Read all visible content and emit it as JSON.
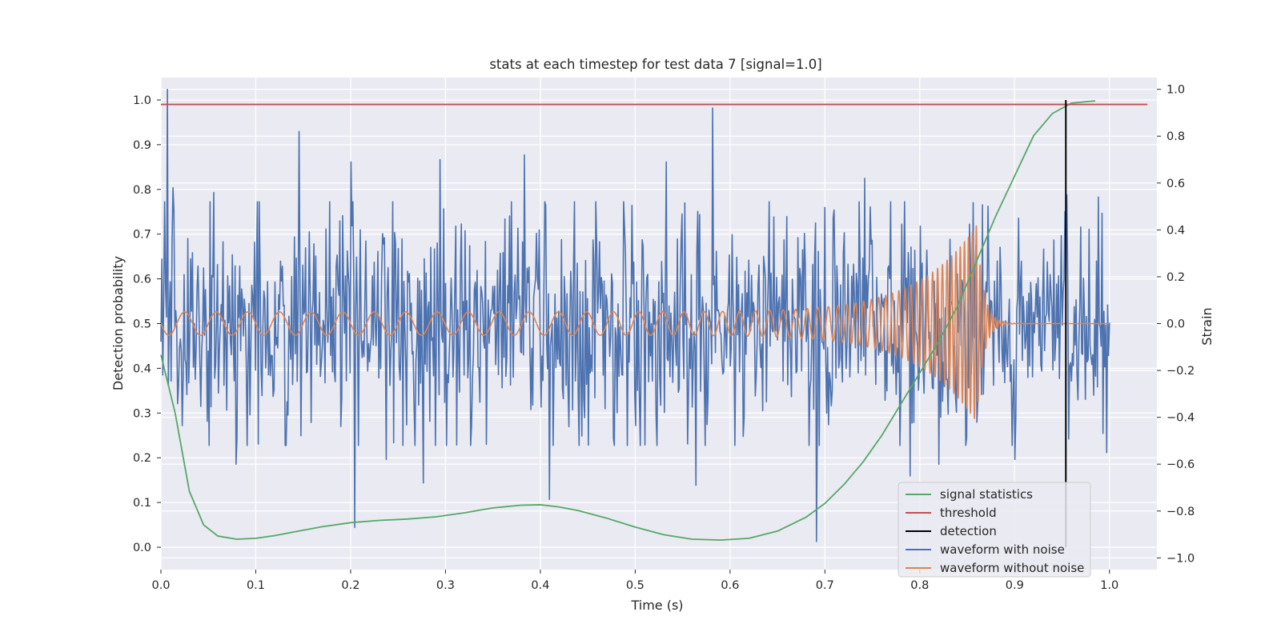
{
  "chart_data": {
    "type": "line",
    "title": "stats at each timestep for test data 7 [signal=1.0]",
    "xlabel": "Time (s)",
    "ylabel": "Detection probability",
    "y2label": "Strain",
    "xlim": [
      0.0,
      1.05
    ],
    "ylim": [
      -0.05,
      1.05
    ],
    "y2lim": [
      -1.05,
      1.05
    ],
    "xticks": [
      0.0,
      0.1,
      0.2,
      0.3,
      0.4,
      0.5,
      0.6,
      0.7,
      0.8,
      0.9,
      1.0
    ],
    "xtick_labels": [
      "0.0",
      "0.1",
      "0.2",
      "0.3",
      "0.4",
      "0.5",
      "0.6",
      "0.7",
      "0.8",
      "0.9",
      "1.0"
    ],
    "yticks": [
      0.0,
      0.1,
      0.2,
      0.3,
      0.4,
      0.5,
      0.6,
      0.7,
      0.8,
      0.9,
      1.0
    ],
    "ytick_labels": [
      "0.0",
      "0.1",
      "0.2",
      "0.3",
      "0.4",
      "0.5",
      "0.6",
      "0.7",
      "0.8",
      "0.9",
      "1.0"
    ],
    "y2ticks": [
      -1.0,
      -0.8,
      -0.6,
      -0.4,
      -0.2,
      0.0,
      0.2,
      0.4,
      0.6,
      0.8,
      1.0
    ],
    "y2tick_labels": [
      "−1.0",
      "−0.8",
      "−0.6",
      "−0.4",
      "−0.2",
      "0.0",
      "0.2",
      "0.4",
      "0.6",
      "0.8",
      "1.0"
    ],
    "grid": true,
    "background": "#eaeaf2",
    "legend_position": "lower-right",
    "series": [
      {
        "name": "signal statistics",
        "axis": "left",
        "color": "#55a868",
        "x": [
          0.0,
          0.015,
          0.03,
          0.045,
          0.06,
          0.08,
          0.1,
          0.12,
          0.14,
          0.17,
          0.2,
          0.23,
          0.26,
          0.29,
          0.32,
          0.35,
          0.38,
          0.4,
          0.42,
          0.44,
          0.47,
          0.5,
          0.53,
          0.56,
          0.59,
          0.62,
          0.65,
          0.68,
          0.7,
          0.72,
          0.74,
          0.76,
          0.78,
          0.8,
          0.82,
          0.84,
          0.86,
          0.88,
          0.9,
          0.92,
          0.94,
          0.96,
          0.985
        ],
        "y": [
          0.43,
          0.3,
          0.125,
          0.05,
          0.025,
          0.018,
          0.02,
          0.026,
          0.034,
          0.046,
          0.055,
          0.06,
          0.063,
          0.068,
          0.077,
          0.088,
          0.094,
          0.095,
          0.09,
          0.082,
          0.065,
          0.045,
          0.028,
          0.018,
          0.016,
          0.02,
          0.036,
          0.067,
          0.098,
          0.14,
          0.19,
          0.25,
          0.32,
          0.39,
          0.46,
          0.54,
          0.64,
          0.74,
          0.83,
          0.92,
          0.97,
          0.993,
          0.998
        ]
      },
      {
        "name": "threshold",
        "axis": "left",
        "color": "#c44e52",
        "x": [
          0.0,
          1.04
        ],
        "y": [
          0.99,
          0.99
        ]
      },
      {
        "name": "detection",
        "axis": "left",
        "color": "#000000",
        "x": [
          0.954,
          0.954
        ],
        "y": [
          0.0,
          1.0
        ]
      },
      {
        "name": "waveform with noise",
        "axis": "right",
        "color": "#4c72b0",
        "x_range": [
          0.0,
          1.0
        ],
        "n_points": 1024,
        "amplitude": 0.25,
        "peaks": [
          {
            "x": 0.007,
            "y": 1.0
          },
          {
            "x": 0.013,
            "y": 0.58
          },
          {
            "x": 0.056,
            "y": 0.56
          },
          {
            "x": 0.146,
            "y": 0.82
          },
          {
            "x": 0.2,
            "y": 0.69
          },
          {
            "x": 0.294,
            "y": 0.7
          },
          {
            "x": 0.383,
            "y": 0.72
          },
          {
            "x": 0.533,
            "y": 0.69
          },
          {
            "x": 0.582,
            "y": 0.92
          },
          {
            "x": 0.742,
            "y": 0.62
          },
          {
            "x": 0.955,
            "y": 0.55
          },
          {
            "x": 0.988,
            "y": 0.54
          }
        ],
        "troughs": [
          {
            "x": 0.079,
            "y": -0.6
          },
          {
            "x": 0.204,
            "y": -0.87
          },
          {
            "x": 0.238,
            "y": -0.58
          },
          {
            "x": 0.277,
            "y": -0.68
          },
          {
            "x": 0.41,
            "y": -0.75
          },
          {
            "x": 0.564,
            "y": -0.69
          },
          {
            "x": 0.691,
            "y": -0.93
          },
          {
            "x": 0.79,
            "y": -0.65
          },
          {
            "x": 0.82,
            "y": -0.6
          },
          {
            "x": 0.9,
            "y": -0.58
          },
          {
            "x": 0.997,
            "y": -0.55
          }
        ]
      },
      {
        "name": "waveform without noise",
        "axis": "right",
        "color": "#dd8452",
        "x_range": [
          0.0,
          1.0
        ],
        "merger_time": 0.86,
        "amplitude_start": 0.05,
        "amplitude_peak": 0.42,
        "frequency_start": 30,
        "frequency_end": 250
      }
    ]
  }
}
